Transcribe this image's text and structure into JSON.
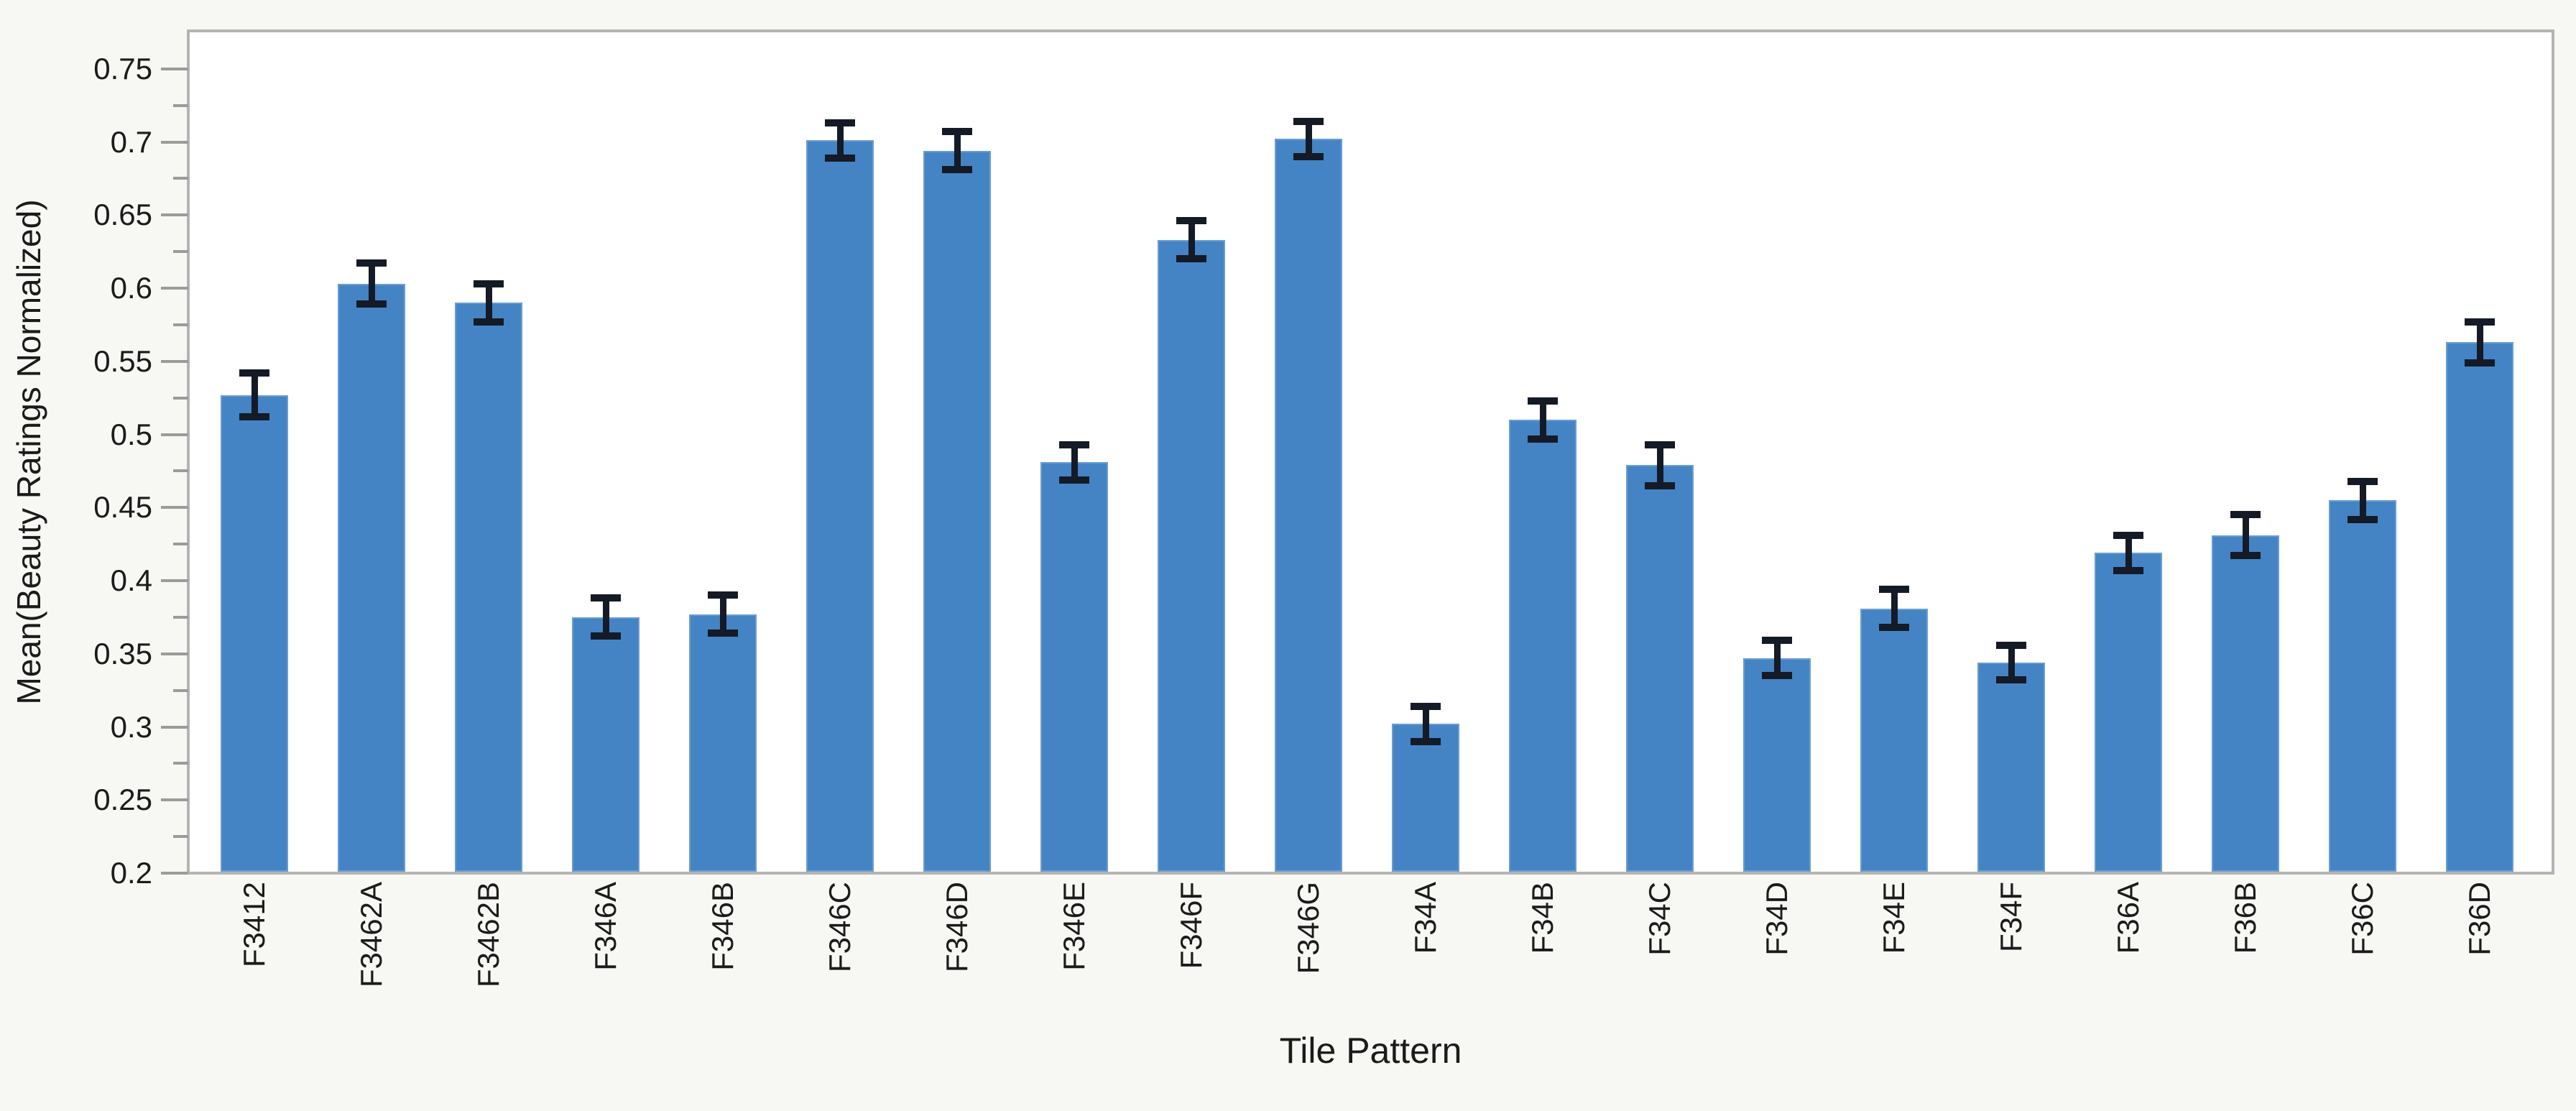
{
  "chart_data": {
    "type": "bar",
    "title": "",
    "xlabel": "Tile Pattern",
    "ylabel": "Mean(Beauty Ratings Normalized)",
    "categories": [
      "F3412",
      "F3462A",
      "F3462B",
      "F346A",
      "F346B",
      "F346C",
      "F346D",
      "F346E",
      "F346F",
      "F346G",
      "F34A",
      "F34B",
      "F34C",
      "F34D",
      "F34E",
      "F34F",
      "F36A",
      "F36B",
      "F36C",
      "F36D"
    ],
    "series": [
      {
        "name": "Mean(Beauty Ratings Normalized)",
        "values": [
          0.527,
          0.603,
          0.59,
          0.375,
          0.377,
          0.701,
          0.694,
          0.481,
          0.633,
          0.702,
          0.302,
          0.51,
          0.479,
          0.347,
          0.381,
          0.344,
          0.419,
          0.431,
          0.455,
          0.563
        ],
        "error_plus": [
          0.015,
          0.014,
          0.013,
          0.013,
          0.013,
          0.012,
          0.013,
          0.012,
          0.013,
          0.012,
          0.012,
          0.013,
          0.014,
          0.012,
          0.013,
          0.012,
          0.012,
          0.014,
          0.013,
          0.014
        ],
        "error_minus": [
          0.015,
          0.014,
          0.013,
          0.013,
          0.013,
          0.012,
          0.013,
          0.012,
          0.013,
          0.012,
          0.012,
          0.013,
          0.014,
          0.012,
          0.013,
          0.012,
          0.012,
          0.014,
          0.013,
          0.014
        ]
      }
    ],
    "ylim": [
      0.2,
      0.776
    ],
    "y_major_ticks": [
      {
        "v": 0.75,
        "label": "0.75"
      },
      {
        "v": 0.7,
        "label": "0.7"
      },
      {
        "v": 0.65,
        "label": "0.65"
      },
      {
        "v": 0.6,
        "label": "0.6"
      },
      {
        "v": 0.55,
        "label": "0.55"
      },
      {
        "v": 0.5,
        "label": "0.5"
      },
      {
        "v": 0.45,
        "label": "0.45"
      },
      {
        "v": 0.4,
        "label": "0.4"
      },
      {
        "v": 0.35,
        "label": "0.35"
      },
      {
        "v": 0.3,
        "label": "0.3"
      },
      {
        "v": 0.25,
        "label": "0.25"
      },
      {
        "v": 0.2,
        "label": "0.2"
      }
    ],
    "y_minor_ticks": [
      0.225,
      0.275,
      0.325,
      0.375,
      0.425,
      0.475,
      0.525,
      0.575,
      0.625,
      0.675,
      0.725
    ],
    "grid": false,
    "legend": "none",
    "error_bars": true
  },
  "colors": {
    "bar_fill": "#4484c4",
    "bar_edge": "#6b9dd2",
    "error_bar": "#141a26",
    "frame": "#b4b4b2",
    "tick": "#9b9b99",
    "text": "#1b1b1b",
    "background": "#f7f7f4",
    "plot_background": "#ffffff"
  }
}
